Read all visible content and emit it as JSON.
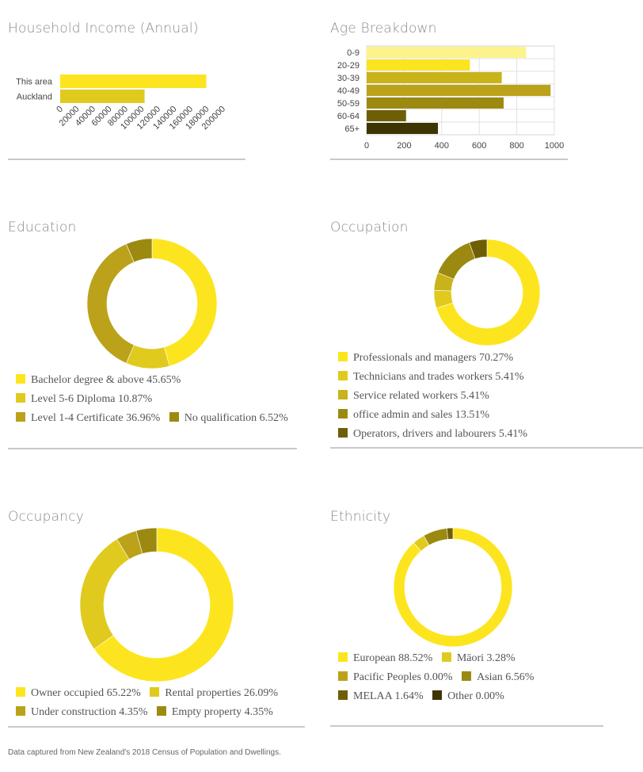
{
  "footnote": "Data captured from New Zealand's 2018 Census of Population and Dwellings.",
  "chart_data": [
    {
      "id": "income",
      "type": "bar",
      "orientation": "horizontal",
      "title": "Household Income (Annual)",
      "categories": [
        "This area",
        "Auckland"
      ],
      "values": [
        180000,
        104000
      ],
      "colors": [
        "#fce51e",
        "#e0ca1e"
      ],
      "xlim": [
        0,
        200000
      ],
      "xticks": [
        "0",
        "20000",
        "40000",
        "60000",
        "80000",
        "100000",
        "120000",
        "140000",
        "160000",
        "180000",
        "200000"
      ],
      "grid": false
    },
    {
      "id": "age",
      "type": "bar",
      "orientation": "horizontal",
      "title": "Age Breakdown",
      "categories": [
        "0-9",
        "20-29",
        "30-39",
        "40-49",
        "50-59",
        "60-64",
        "65+"
      ],
      "values": [
        850,
        550,
        720,
        980,
        730,
        210,
        380
      ],
      "colors": [
        "#fdf38c",
        "#fce51e",
        "#c9b31a",
        "#bba21a",
        "#9c8a10",
        "#6e5f06",
        "#3d3500"
      ],
      "xlim": [
        0,
        1000
      ],
      "xticks": [
        "0",
        "200",
        "400",
        "600",
        "800",
        "1000"
      ],
      "grid": true
    },
    {
      "id": "education",
      "type": "pie",
      "donut": true,
      "title": "Education",
      "slices": [
        {
          "label": "Bachelor degree & above",
          "pct": "45.65%",
          "value": 45.65,
          "color": "#fce51e"
        },
        {
          "label": "Level 5-6 Diploma",
          "pct": "10.87%",
          "value": 10.87,
          "color": "#e0ca1e"
        },
        {
          "label": "Level 1-4 Certificate",
          "pct": "36.96%",
          "value": 36.96,
          "color": "#bba21a"
        },
        {
          "label": "No qualification",
          "pct": "6.52%",
          "value": 6.52,
          "color": "#9c8a10"
        }
      ]
    },
    {
      "id": "occupation",
      "type": "pie",
      "donut": true,
      "title": "Occupation",
      "slices": [
        {
          "label": "Professionals and managers",
          "pct": "70.27%",
          "value": 70.27,
          "color": "#fce51e"
        },
        {
          "label": "Technicians and trades workers",
          "pct": "5.41%",
          "value": 5.41,
          "color": "#e0ca1e"
        },
        {
          "label": "Service related workers",
          "pct": "5.41%",
          "value": 5.41,
          "color": "#c9b31a"
        },
        {
          "label": "office admin and sales",
          "pct": "13.51%",
          "value": 13.51,
          "color": "#9c8a10"
        },
        {
          "label": "Operators, drivers and labourers",
          "pct": "5.41%",
          "value": 5.41,
          "color": "#6e5f06"
        }
      ]
    },
    {
      "id": "occupancy",
      "type": "pie",
      "donut": true,
      "title": "Occupancy",
      "slices": [
        {
          "label": "Owner occupied",
          "pct": "65.22%",
          "value": 65.22,
          "color": "#fce51e"
        },
        {
          "label": "Rental properties",
          "pct": "26.09%",
          "value": 26.09,
          "color": "#e0ca1e"
        },
        {
          "label": "Under construction",
          "pct": "4.35%",
          "value": 4.35,
          "color": "#bba21a"
        },
        {
          "label": "Empty property",
          "pct": "4.35%",
          "value": 4.35,
          "color": "#9c8a10"
        }
      ]
    },
    {
      "id": "ethnicity",
      "type": "pie",
      "donut": true,
      "title": "Ethnicity",
      "slices": [
        {
          "label": "European",
          "pct": "88.52%",
          "value": 88.52,
          "color": "#fce51e"
        },
        {
          "label": "Māori",
          "pct": "3.28%",
          "value": 3.28,
          "color": "#e0ca1e"
        },
        {
          "label": "Pacific Peoples",
          "pct": "0.00%",
          "value": 0,
          "color": "#bba21a"
        },
        {
          "label": "Asian",
          "pct": "6.56%",
          "value": 6.56,
          "color": "#9c8a10"
        },
        {
          "label": "MELAA",
          "pct": "1.64%",
          "value": 1.64,
          "color": "#6e5f06"
        },
        {
          "label": "Other",
          "pct": "0.00%",
          "value": 0,
          "color": "#3d3500"
        }
      ]
    }
  ]
}
